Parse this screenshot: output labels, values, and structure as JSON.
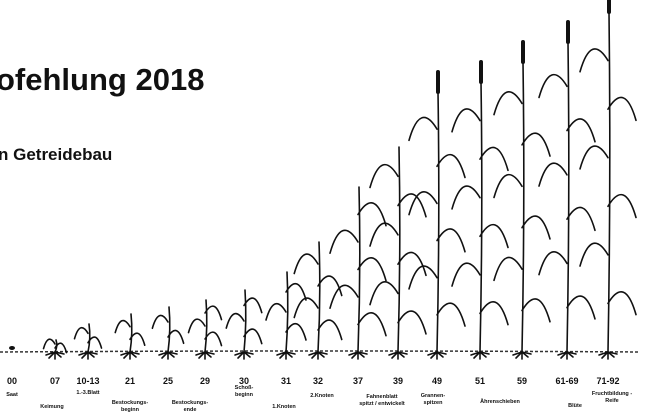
{
  "header": {
    "title": "ofehlung 2018",
    "subtitle": "n Getreidebau"
  },
  "stages": [
    {
      "code": "00",
      "label": [
        "Saat"
      ]
    },
    {
      "code": "07",
      "label": [
        "Keimung"
      ]
    },
    {
      "code": "10-13",
      "label": [
        "1.-3.Blatt"
      ]
    },
    {
      "code": "21",
      "label": [
        "Bestockungs-",
        "beginn"
      ]
    },
    {
      "code": "25",
      "label": []
    },
    {
      "code": "29",
      "label": [
        "Bestockungs-",
        "ende"
      ]
    },
    {
      "code": "30",
      "label": [
        "Schoß-",
        "beginn"
      ]
    },
    {
      "code": "31",
      "label": [
        "1.Knoten"
      ]
    },
    {
      "code": "32",
      "label": [
        "2.Knoten"
      ]
    },
    {
      "code": "37",
      "label": [
        "Fahnenblatt",
        "spitzt / entwickelt"
      ]
    },
    {
      "code": "39",
      "label": []
    },
    {
      "code": "49",
      "label": [
        "Grannen-",
        "spitzen"
      ]
    },
    {
      "code": "51",
      "label": [
        "Ährenschieben"
      ]
    },
    {
      "code": "59",
      "label": []
    },
    {
      "code": "61-69",
      "label": [
        "Blüte"
      ]
    },
    {
      "code": "71-92",
      "label": [
        "Fruchtbildung -",
        "Reife"
      ]
    }
  ]
}
